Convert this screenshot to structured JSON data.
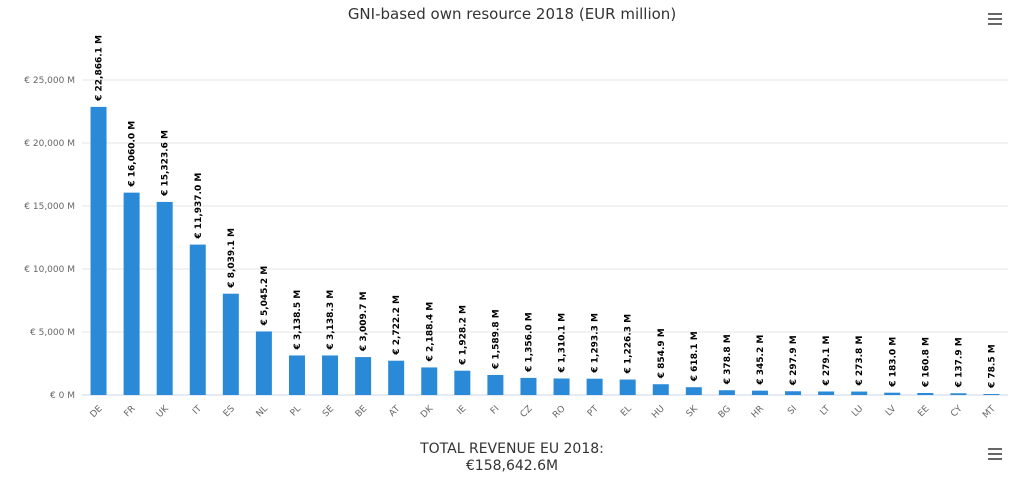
{
  "chart_data": {
    "type": "bar",
    "title": "GNI-based own resource 2018 (EUR million)",
    "categories": [
      "DE",
      "FR",
      "UK",
      "IT",
      "ES",
      "NL",
      "PL",
      "SE",
      "BE",
      "AT",
      "DK",
      "IE",
      "FI",
      "CZ",
      "RO",
      "PT",
      "EL",
      "HU",
      "SK",
      "BG",
      "HR",
      "SI",
      "LT",
      "LU",
      "LV",
      "EE",
      "CY",
      "MT"
    ],
    "values": [
      22866.1,
      16060.0,
      15323.6,
      11937.0,
      8039.1,
      5045.2,
      3138.5,
      3138.3,
      3009.7,
      2722.2,
      2188.4,
      1928.2,
      1589.8,
      1356.0,
      1310.1,
      1293.3,
      1226.3,
      854.9,
      618.1,
      378.8,
      345.2,
      297.9,
      279.1,
      273.8,
      183.0,
      160.8,
      137.9,
      78.5
    ],
    "data_labels": [
      "€ 22,866.1 M",
      "€ 16,060.0 M",
      "€ 15,323.6 M",
      "€ 11,937.0 M",
      "€ 8,039.1 M",
      "€ 5,045.2 M",
      "€ 3,138.5 M",
      "€ 3,138.3 M",
      "€ 3,009.7 M",
      "€ 2,722.2 M",
      "€ 2,188.4 M",
      "€ 1,928.2 M",
      "€ 1,589.8 M",
      "€ 1,356.0 M",
      "€ 1,310.1 M",
      "€ 1,293.3 M",
      "€ 1,226.3 M",
      "€ 854.9 M",
      "€ 618.1 M",
      "€ 378.8 M",
      "€ 345.2 M",
      "€ 297.9 M",
      "€ 279.1 M",
      "€ 273.8 M",
      "€ 183.0 M",
      "€ 160.8 M",
      "€ 137.9 M",
      "€ 78.5 M"
    ],
    "yticks": [
      0,
      5000,
      10000,
      15000,
      20000,
      25000
    ],
    "ytick_labels": [
      "€ 0 M",
      "€ 5,000 M",
      "€ 10,000 M",
      "€ 15,000 M",
      "€ 20,000 M",
      "€ 25,000 M"
    ],
    "ylim": [
      0,
      25000
    ],
    "xlabel": "",
    "ylabel": "",
    "grid": true,
    "bar_color": "#2b8ad8"
  },
  "footer": {
    "total_label": "TOTAL REVENUE EU 2018:",
    "total_value": "€158,642.6M"
  },
  "icons": {
    "menu": "hamburger-menu-icon"
  }
}
